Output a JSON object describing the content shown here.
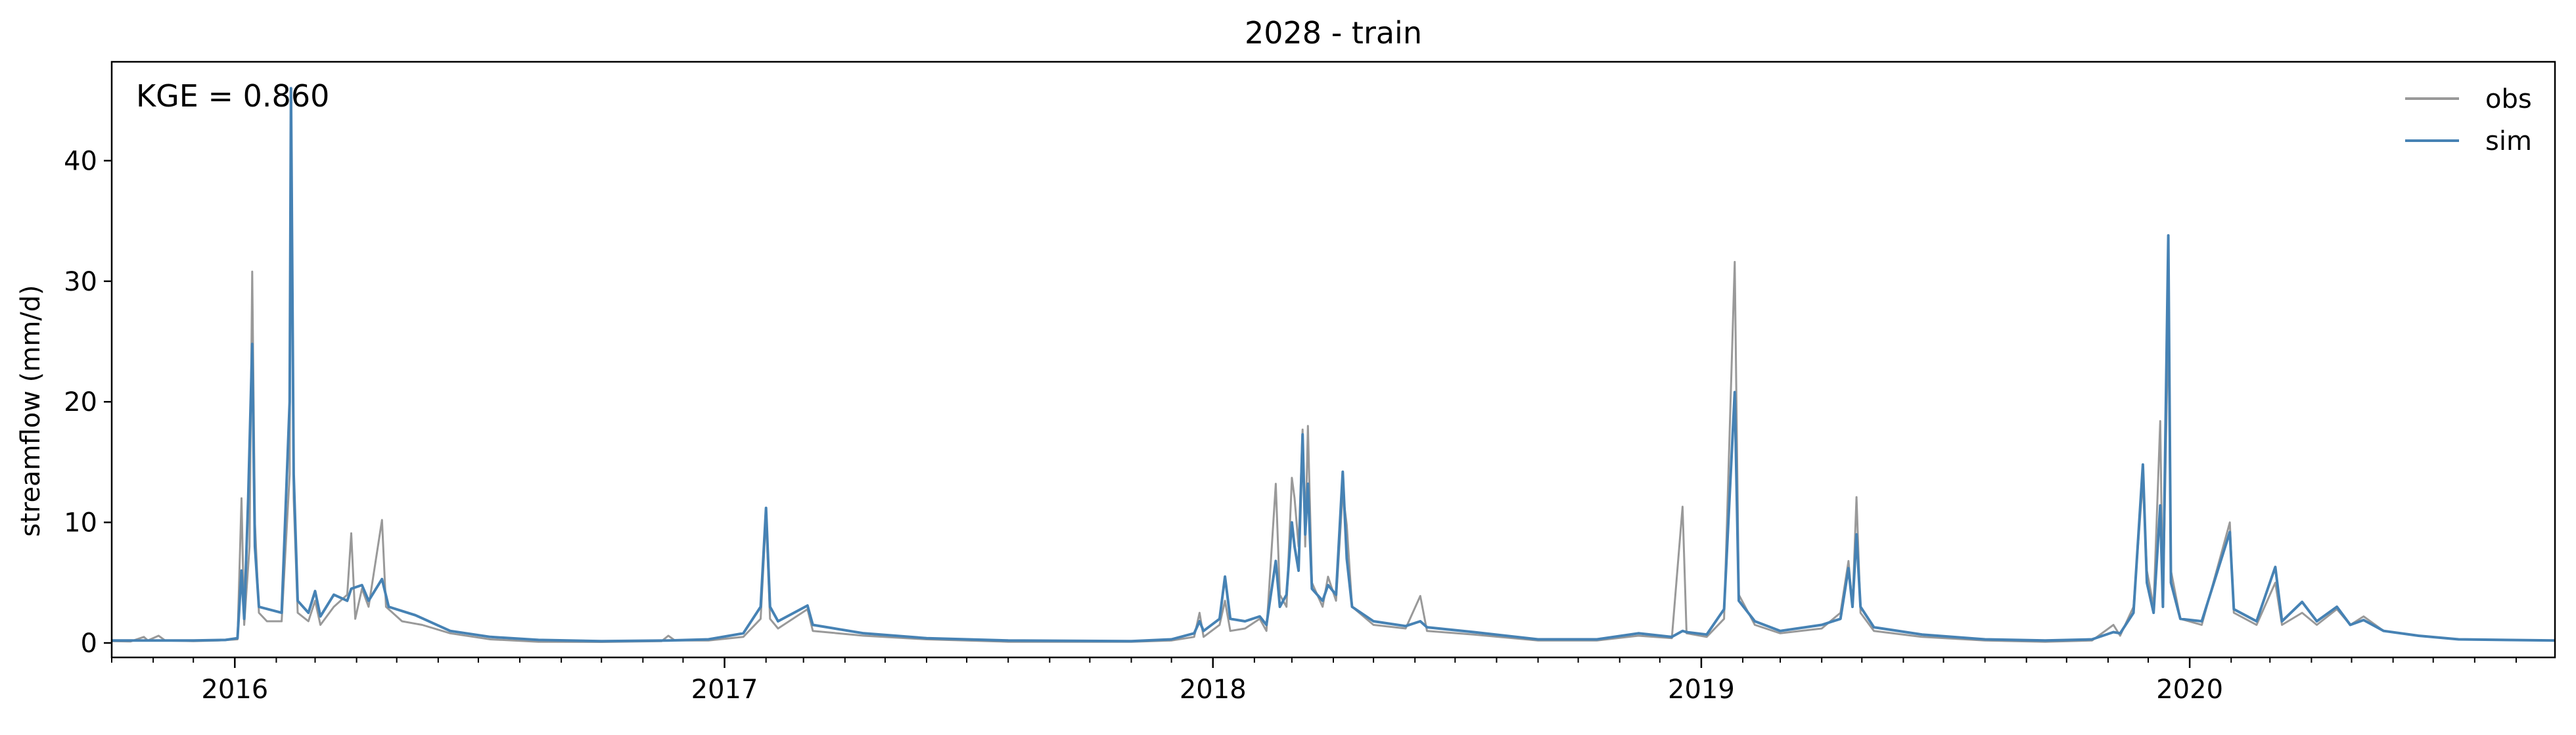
{
  "chart_data": {
    "type": "line",
    "title": "2028 - train",
    "xlabel": "",
    "ylabel": "streamflow (mm/d)",
    "annotation": "KGE = 0.860",
    "x_range": [
      "2015-10-01",
      "2020-09-30"
    ],
    "ylim": [
      -1.2,
      48.2
    ],
    "y_ticks": [
      0,
      10,
      20,
      30,
      40
    ],
    "y_tick_labels": [
      "0",
      "10",
      "20",
      "30",
      "40"
    ],
    "x_tick_labels": [
      "2016",
      "2017",
      "2018",
      "2019",
      "2020"
    ],
    "x_tick_dates": [
      "2016-01-01",
      "2017-01-01",
      "2018-01-01",
      "2019-01-01",
      "2020-01-01"
    ],
    "grid": false,
    "legend_position": "top-right",
    "series": [
      {
        "name": "obs",
        "color": "#999999",
        "points": [
          [
            "2015-10-01",
            0.15
          ],
          [
            "2015-10-15",
            0.12
          ],
          [
            "2015-10-25",
            0.5
          ],
          [
            "2015-10-28",
            0.2
          ],
          [
            "2015-11-05",
            0.6
          ],
          [
            "2015-11-10",
            0.2
          ],
          [
            "2015-12-01",
            0.15
          ],
          [
            "2015-12-20",
            0.2
          ],
          [
            "2016-01-03",
            0.3
          ],
          [
            "2016-01-06",
            12.0
          ],
          [
            "2016-01-08",
            1.5
          ],
          [
            "2016-01-12",
            8.0
          ],
          [
            "2016-01-14",
            30.8
          ],
          [
            "2016-01-16",
            10.0
          ],
          [
            "2016-01-19",
            2.5
          ],
          [
            "2016-01-25",
            1.8
          ],
          [
            "2016-02-05",
            1.8
          ],
          [
            "2016-02-11",
            14.0
          ],
          [
            "2016-02-12",
            44.0
          ],
          [
            "2016-02-14",
            12.0
          ],
          [
            "2016-02-17",
            2.5
          ],
          [
            "2016-02-25",
            1.8
          ],
          [
            "2016-03-01",
            3.5
          ],
          [
            "2016-03-05",
            1.5
          ],
          [
            "2016-03-15",
            3.0
          ],
          [
            "2016-03-25",
            4.0
          ],
          [
            "2016-03-28",
            9.1
          ],
          [
            "2016-03-31",
            2.0
          ],
          [
            "2016-04-05",
            4.5
          ],
          [
            "2016-04-10",
            3.0
          ],
          [
            "2016-04-20",
            10.2
          ],
          [
            "2016-04-23",
            3.0
          ],
          [
            "2016-05-05",
            1.8
          ],
          [
            "2016-05-20",
            1.5
          ],
          [
            "2016-06-10",
            0.8
          ],
          [
            "2016-07-10",
            0.3
          ],
          [
            "2016-08-15",
            0.1
          ],
          [
            "2016-10-01",
            0.08
          ],
          [
            "2016-11-15",
            0.15
          ],
          [
            "2016-11-20",
            0.6
          ],
          [
            "2016-11-25",
            0.2
          ],
          [
            "2016-12-20",
            0.2
          ],
          [
            "2017-01-15",
            0.5
          ],
          [
            "2017-01-28",
            2.0
          ],
          [
            "2017-02-01",
            10.5
          ],
          [
            "2017-02-04",
            2.0
          ],
          [
            "2017-02-10",
            1.2
          ],
          [
            "2017-03-04",
            2.8
          ],
          [
            "2017-03-08",
            1.0
          ],
          [
            "2017-04-15",
            0.6
          ],
          [
            "2017-06-01",
            0.3
          ],
          [
            "2017-08-01",
            0.1
          ],
          [
            "2017-11-01",
            0.1
          ],
          [
            "2017-12-01",
            0.2
          ],
          [
            "2017-12-18",
            0.5
          ],
          [
            "2017-12-22",
            2.5
          ],
          [
            "2017-12-25",
            0.5
          ],
          [
            "2018-01-06",
            1.5
          ],
          [
            "2018-01-10",
            3.5
          ],
          [
            "2018-01-14",
            1.0
          ],
          [
            "2018-01-25",
            1.2
          ],
          [
            "2018-02-05",
            2.0
          ],
          [
            "2018-02-10",
            1.0
          ],
          [
            "2018-02-17",
            13.2
          ],
          [
            "2018-02-20",
            4.0
          ],
          [
            "2018-02-25",
            3.0
          ],
          [
            "2018-03-01",
            13.7
          ],
          [
            "2018-03-03",
            12.0
          ],
          [
            "2018-03-06",
            8.0
          ],
          [
            "2018-03-09",
            17.7
          ],
          [
            "2018-03-11",
            8.0
          ],
          [
            "2018-03-13",
            18.0
          ],
          [
            "2018-03-16",
            5.0
          ],
          [
            "2018-03-24",
            3.0
          ],
          [
            "2018-03-28",
            5.5
          ],
          [
            "2018-04-03",
            3.5
          ],
          [
            "2018-04-08",
            12.5
          ],
          [
            "2018-04-11",
            9.8
          ],
          [
            "2018-04-15",
            3.0
          ],
          [
            "2018-05-01",
            1.5
          ],
          [
            "2018-05-25",
            1.2
          ],
          [
            "2018-06-05",
            3.9
          ],
          [
            "2018-06-10",
            1.0
          ],
          [
            "2018-07-15",
            0.7
          ],
          [
            "2018-09-01",
            0.2
          ],
          [
            "2018-10-15",
            0.2
          ],
          [
            "2018-11-15",
            0.6
          ],
          [
            "2018-12-10",
            0.4
          ],
          [
            "2018-12-18",
            11.3
          ],
          [
            "2018-12-21",
            0.8
          ],
          [
            "2019-01-05",
            0.5
          ],
          [
            "2019-01-18",
            2.0
          ],
          [
            "2019-01-26",
            31.6
          ],
          [
            "2019-01-29",
            4.0
          ],
          [
            "2019-02-10",
            1.5
          ],
          [
            "2019-03-01",
            0.8
          ],
          [
            "2019-04-01",
            1.2
          ],
          [
            "2019-04-15",
            2.5
          ],
          [
            "2019-04-21",
            6.8
          ],
          [
            "2019-04-24",
            3.0
          ],
          [
            "2019-04-27",
            12.1
          ],
          [
            "2019-04-30",
            2.5
          ],
          [
            "2019-05-10",
            1.0
          ],
          [
            "2019-06-15",
            0.5
          ],
          [
            "2019-08-01",
            0.2
          ],
          [
            "2019-09-15",
            0.1
          ],
          [
            "2019-10-20",
            0.2
          ],
          [
            "2019-11-05",
            1.5
          ],
          [
            "2019-11-10",
            0.6
          ],
          [
            "2019-11-20",
            3.0
          ],
          [
            "2019-11-27",
            13.5
          ],
          [
            "2019-11-30",
            6.0
          ],
          [
            "2019-12-05",
            3.0
          ],
          [
            "2019-12-10",
            18.4
          ],
          [
            "2019-12-12",
            3.0
          ],
          [
            "2019-12-16",
            27.0
          ],
          [
            "2019-12-18",
            6.0
          ],
          [
            "2019-12-25",
            2.0
          ],
          [
            "2020-01-10",
            1.5
          ],
          [
            "2020-01-31",
            10.0
          ],
          [
            "2020-02-03",
            2.5
          ],
          [
            "2020-02-20",
            1.5
          ],
          [
            "2020-03-05",
            5.0
          ],
          [
            "2020-03-10",
            1.5
          ],
          [
            "2020-03-25",
            2.5
          ],
          [
            "2020-04-05",
            1.5
          ],
          [
            "2020-04-20",
            2.8
          ],
          [
            "2020-04-30",
            1.5
          ],
          [
            "2020-05-10",
            2.2
          ],
          [
            "2020-05-25",
            1.0
          ],
          [
            "2020-06-20",
            0.6
          ],
          [
            "2020-07-20",
            0.3
          ],
          [
            "2020-09-30",
            0.2
          ]
        ]
      },
      {
        "name": "sim",
        "color": "#4682b4",
        "points": [
          [
            "2015-10-01",
            0.2
          ],
          [
            "2015-11-01",
            0.2
          ],
          [
            "2015-12-01",
            0.2
          ],
          [
            "2015-12-25",
            0.25
          ],
          [
            "2016-01-03",
            0.4
          ],
          [
            "2016-01-06",
            6.0
          ],
          [
            "2016-01-08",
            2.0
          ],
          [
            "2016-01-11",
            12.0
          ],
          [
            "2016-01-14",
            24.8
          ],
          [
            "2016-01-16",
            8.0
          ],
          [
            "2016-01-19",
            3.0
          ],
          [
            "2016-02-05",
            2.5
          ],
          [
            "2016-02-11",
            20.0
          ],
          [
            "2016-02-12",
            46.0
          ],
          [
            "2016-02-14",
            14.0
          ],
          [
            "2016-02-17",
            3.5
          ],
          [
            "2016-02-25",
            2.5
          ],
          [
            "2016-03-01",
            4.3
          ],
          [
            "2016-03-05",
            2.2
          ],
          [
            "2016-03-15",
            4.0
          ],
          [
            "2016-03-25",
            3.5
          ],
          [
            "2016-03-28",
            4.5
          ],
          [
            "2016-04-05",
            4.8
          ],
          [
            "2016-04-10",
            3.5
          ],
          [
            "2016-04-20",
            5.3
          ],
          [
            "2016-04-25",
            3.0
          ],
          [
            "2016-05-15",
            2.3
          ],
          [
            "2016-06-10",
            1.0
          ],
          [
            "2016-07-10",
            0.5
          ],
          [
            "2016-08-15",
            0.25
          ],
          [
            "2016-10-01",
            0.15
          ],
          [
            "2016-11-20",
            0.2
          ],
          [
            "2016-12-20",
            0.3
          ],
          [
            "2017-01-15",
            0.8
          ],
          [
            "2017-01-28",
            3.0
          ],
          [
            "2017-02-01",
            11.2
          ],
          [
            "2017-02-04",
            3.0
          ],
          [
            "2017-02-10",
            1.8
          ],
          [
            "2017-03-04",
            3.1
          ],
          [
            "2017-03-08",
            1.5
          ],
          [
            "2017-04-15",
            0.8
          ],
          [
            "2017-06-01",
            0.4
          ],
          [
            "2017-08-01",
            0.2
          ],
          [
            "2017-11-01",
            0.15
          ],
          [
            "2017-12-01",
            0.3
          ],
          [
            "2017-12-18",
            0.8
          ],
          [
            "2017-12-22",
            1.8
          ],
          [
            "2017-12-25",
            1.0
          ],
          [
            "2018-01-06",
            2.0
          ],
          [
            "2018-01-10",
            5.5
          ],
          [
            "2018-01-14",
            2.0
          ],
          [
            "2018-01-25",
            1.8
          ],
          [
            "2018-02-05",
            2.2
          ],
          [
            "2018-02-10",
            1.5
          ],
          [
            "2018-02-17",
            6.8
          ],
          [
            "2018-02-20",
            3.0
          ],
          [
            "2018-02-25",
            4.0
          ],
          [
            "2018-03-01",
            10.0
          ],
          [
            "2018-03-03",
            8.0
          ],
          [
            "2018-03-06",
            6.0
          ],
          [
            "2018-03-09",
            17.3
          ],
          [
            "2018-03-11",
            9.0
          ],
          [
            "2018-03-13",
            13.2
          ],
          [
            "2018-03-16",
            4.5
          ],
          [
            "2018-03-24",
            3.5
          ],
          [
            "2018-03-28",
            4.8
          ],
          [
            "2018-04-03",
            4.0
          ],
          [
            "2018-04-08",
            14.2
          ],
          [
            "2018-04-11",
            7.0
          ],
          [
            "2018-04-15",
            3.0
          ],
          [
            "2018-05-01",
            1.8
          ],
          [
            "2018-05-25",
            1.4
          ],
          [
            "2018-06-05",
            1.8
          ],
          [
            "2018-06-10",
            1.3
          ],
          [
            "2018-07-15",
            0.9
          ],
          [
            "2018-09-01",
            0.3
          ],
          [
            "2018-10-15",
            0.3
          ],
          [
            "2018-11-15",
            0.8
          ],
          [
            "2018-12-10",
            0.5
          ],
          [
            "2018-12-18",
            1.0
          ],
          [
            "2018-12-21",
            0.9
          ],
          [
            "2019-01-05",
            0.7
          ],
          [
            "2019-01-18",
            2.8
          ],
          [
            "2019-01-26",
            20.8
          ],
          [
            "2019-01-29",
            3.5
          ],
          [
            "2019-02-10",
            1.8
          ],
          [
            "2019-03-01",
            1.0
          ],
          [
            "2019-04-01",
            1.5
          ],
          [
            "2019-04-15",
            2.0
          ],
          [
            "2019-04-21",
            6.2
          ],
          [
            "2019-04-24",
            3.0
          ],
          [
            "2019-04-27",
            9.0
          ],
          [
            "2019-04-30",
            3.0
          ],
          [
            "2019-05-10",
            1.3
          ],
          [
            "2019-06-15",
            0.7
          ],
          [
            "2019-08-01",
            0.3
          ],
          [
            "2019-09-15",
            0.2
          ],
          [
            "2019-10-20",
            0.3
          ],
          [
            "2019-11-05",
            0.9
          ],
          [
            "2019-11-10",
            0.8
          ],
          [
            "2019-11-20",
            2.5
          ],
          [
            "2019-11-27",
            14.8
          ],
          [
            "2019-11-30",
            5.0
          ],
          [
            "2019-12-05",
            2.5
          ],
          [
            "2019-12-10",
            11.4
          ],
          [
            "2019-12-12",
            3.0
          ],
          [
            "2019-12-16",
            33.8
          ],
          [
            "2019-12-18",
            5.0
          ],
          [
            "2019-12-25",
            2.0
          ],
          [
            "2020-01-10",
            1.8
          ],
          [
            "2020-01-31",
            9.2
          ],
          [
            "2020-02-03",
            2.8
          ],
          [
            "2020-02-20",
            1.8
          ],
          [
            "2020-03-05",
            6.3
          ],
          [
            "2020-03-10",
            1.8
          ],
          [
            "2020-03-25",
            3.4
          ],
          [
            "2020-04-05",
            1.8
          ],
          [
            "2020-04-20",
            3.0
          ],
          [
            "2020-04-30",
            1.5
          ],
          [
            "2020-05-10",
            1.9
          ],
          [
            "2020-05-25",
            1.0
          ],
          [
            "2020-06-20",
            0.6
          ],
          [
            "2020-07-20",
            0.3
          ],
          [
            "2020-09-30",
            0.2
          ]
        ]
      }
    ]
  }
}
